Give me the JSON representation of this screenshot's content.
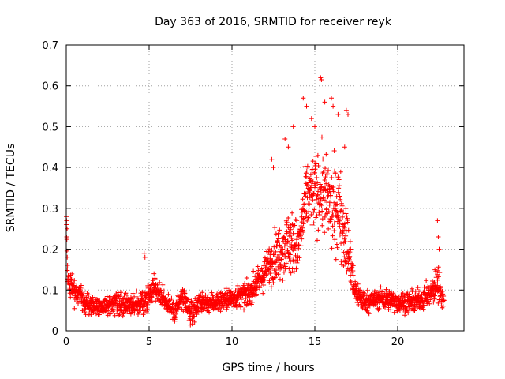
{
  "chart_data": {
    "type": "scatter",
    "title": "Day 363 of 2016, SRMTID for receiver reyk",
    "xlabel": "GPS time / hours",
    "ylabel": "SRMTID / TECUs",
    "xlim": [
      0,
      24
    ],
    "ylim": [
      0,
      0.7
    ],
    "x_ticks": [
      0,
      5,
      10,
      15,
      20
    ],
    "x_tick_labels": [
      "0",
      "5",
      "10",
      "15",
      "20"
    ],
    "y_ticks": [
      0,
      0.1,
      0.2,
      0.3,
      0.4,
      0.5,
      0.6,
      0.7
    ],
    "y_tick_labels": [
      "0",
      "0.1",
      "0.2",
      "0.3",
      "0.4",
      "0.5",
      "0.6",
      "0.7"
    ],
    "grid": true,
    "marker": "+",
    "series": [
      {
        "name": "SRMTID",
        "color": "#ff0000",
        "x_range_hours": [
          0,
          22.8
        ],
        "profile": [
          {
            "x": 0.0,
            "median": 0.27,
            "spread": 0.02
          },
          {
            "x": 0.1,
            "median": 0.12,
            "spread": 0.04
          },
          {
            "x": 0.5,
            "median": 0.1,
            "spread": 0.04
          },
          {
            "x": 1.0,
            "median": 0.07,
            "spread": 0.03
          },
          {
            "x": 2.0,
            "median": 0.06,
            "spread": 0.025
          },
          {
            "x": 3.0,
            "median": 0.065,
            "spread": 0.03
          },
          {
            "x": 4.0,
            "median": 0.06,
            "spread": 0.03
          },
          {
            "x": 4.7,
            "median": 0.07,
            "spread": 0.04
          },
          {
            "x": 5.3,
            "median": 0.11,
            "spread": 0.035
          },
          {
            "x": 6.0,
            "median": 0.07,
            "spread": 0.03
          },
          {
            "x": 6.5,
            "median": 0.05,
            "spread": 0.035
          },
          {
            "x": 7.0,
            "median": 0.08,
            "spread": 0.04
          },
          {
            "x": 7.5,
            "median": 0.04,
            "spread": 0.035
          },
          {
            "x": 8.0,
            "median": 0.07,
            "spread": 0.03
          },
          {
            "x": 9.0,
            "median": 0.07,
            "spread": 0.03
          },
          {
            "x": 10.0,
            "median": 0.08,
            "spread": 0.03
          },
          {
            "x": 11.0,
            "median": 0.09,
            "spread": 0.035
          },
          {
            "x": 11.8,
            "median": 0.13,
            "spread": 0.04
          },
          {
            "x": 12.5,
            "median": 0.18,
            "spread": 0.07
          },
          {
            "x": 13.0,
            "median": 0.2,
            "spread": 0.08
          },
          {
            "x": 13.5,
            "median": 0.22,
            "spread": 0.1
          },
          {
            "x": 14.0,
            "median": 0.2,
            "spread": 0.08
          },
          {
            "x": 14.5,
            "median": 0.33,
            "spread": 0.1
          },
          {
            "x": 15.0,
            "median": 0.34,
            "spread": 0.11
          },
          {
            "x": 15.5,
            "median": 0.34,
            "spread": 0.12
          },
          {
            "x": 16.0,
            "median": 0.3,
            "spread": 0.12
          },
          {
            "x": 16.5,
            "median": 0.3,
            "spread": 0.13
          },
          {
            "x": 17.0,
            "median": 0.2,
            "spread": 0.1
          },
          {
            "x": 17.4,
            "median": 0.1,
            "spread": 0.04
          },
          {
            "x": 18.0,
            "median": 0.07,
            "spread": 0.03
          },
          {
            "x": 19.0,
            "median": 0.08,
            "spread": 0.03
          },
          {
            "x": 20.0,
            "median": 0.07,
            "spread": 0.03
          },
          {
            "x": 21.0,
            "median": 0.07,
            "spread": 0.03
          },
          {
            "x": 22.0,
            "median": 0.09,
            "spread": 0.035
          },
          {
            "x": 22.4,
            "median": 0.12,
            "spread": 0.06
          },
          {
            "x": 22.8,
            "median": 0.07,
            "spread": 0.02
          }
        ],
        "notable_points": [
          {
            "x": 0.0,
            "y": 0.28
          },
          {
            "x": 0.02,
            "y": 0.27
          },
          {
            "x": 0.05,
            "y": 0.25
          },
          {
            "x": 4.7,
            "y": 0.19
          },
          {
            "x": 4.75,
            "y": 0.18
          },
          {
            "x": 12.4,
            "y": 0.42
          },
          {
            "x": 12.5,
            "y": 0.4
          },
          {
            "x": 13.2,
            "y": 0.47
          },
          {
            "x": 13.4,
            "y": 0.45
          },
          {
            "x": 13.7,
            "y": 0.5
          },
          {
            "x": 14.3,
            "y": 0.57
          },
          {
            "x": 14.5,
            "y": 0.55
          },
          {
            "x": 14.8,
            "y": 0.52
          },
          {
            "x": 15.0,
            "y": 0.5
          },
          {
            "x": 15.35,
            "y": 0.62
          },
          {
            "x": 15.4,
            "y": 0.615
          },
          {
            "x": 15.6,
            "y": 0.56
          },
          {
            "x": 16.0,
            "y": 0.57
          },
          {
            "x": 16.1,
            "y": 0.55
          },
          {
            "x": 16.4,
            "y": 0.53
          },
          {
            "x": 16.9,
            "y": 0.54
          },
          {
            "x": 17.0,
            "y": 0.53
          },
          {
            "x": 16.8,
            "y": 0.45
          },
          {
            "x": 22.4,
            "y": 0.27
          },
          {
            "x": 22.45,
            "y": 0.23
          },
          {
            "x": 22.5,
            "y": 0.2
          }
        ]
      }
    ]
  }
}
